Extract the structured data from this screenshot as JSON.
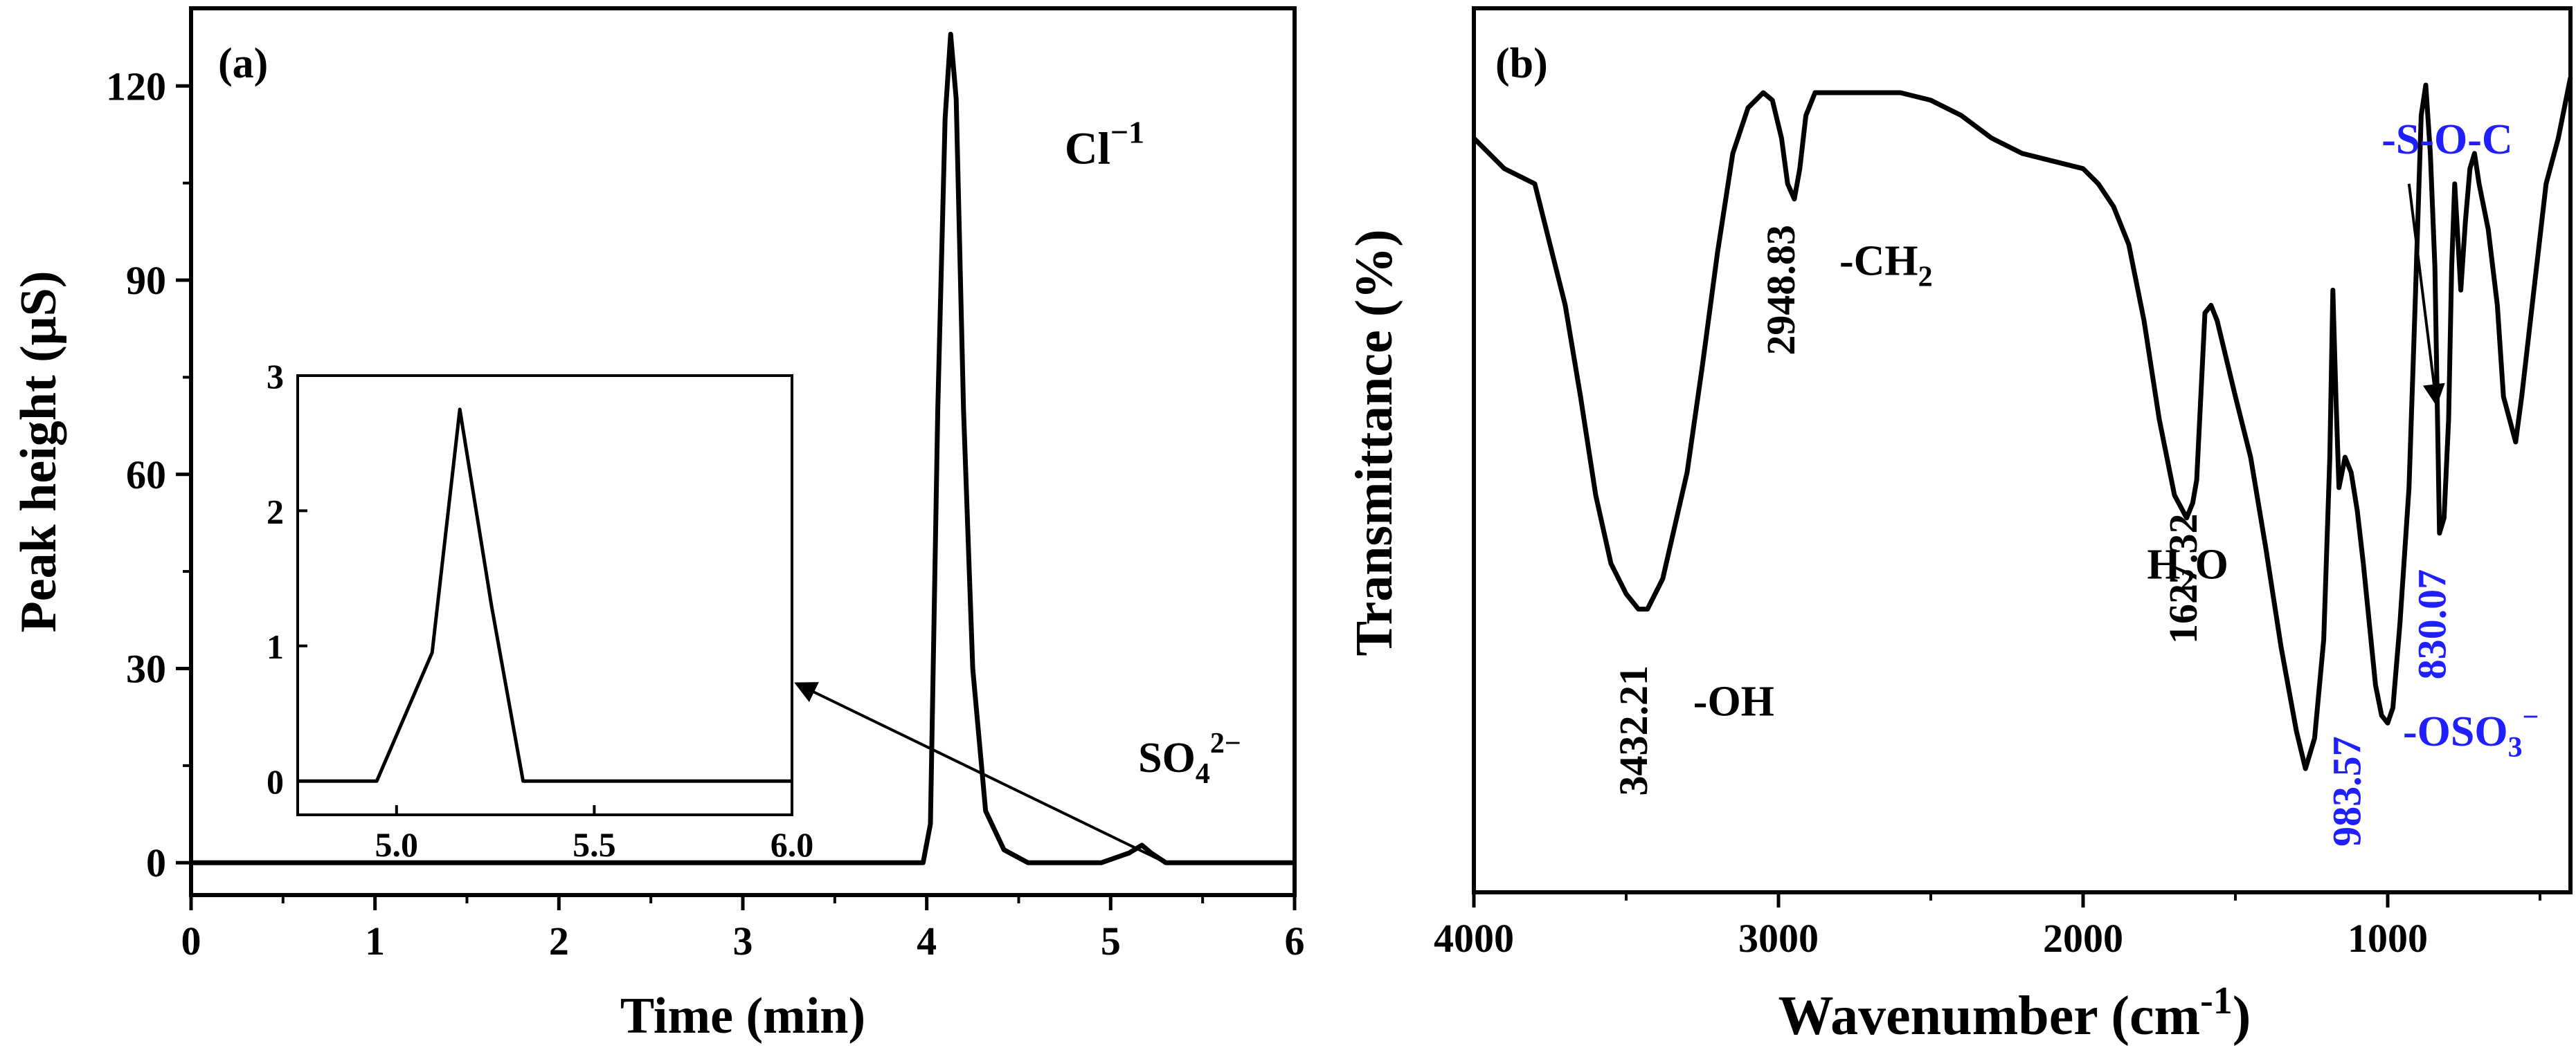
{
  "colors": {
    "ink": "#000000",
    "accent": "#1f1fff",
    "background": "#ffffff"
  },
  "chart_data": [
    {
      "id": "a",
      "type": "line",
      "panel_label": "(a)",
      "xlabel": "Time (min)",
      "ylabel": "Peak height (μS)",
      "xlim": [
        0,
        6
      ],
      "ylim": [
        -5,
        132
      ],
      "xticks": [
        0,
        1,
        2,
        3,
        4,
        5,
        6
      ],
      "xtick_labels": [
        "0",
        "1",
        "2",
        "3",
        "4",
        "5",
        "6"
      ],
      "yticks": [
        0,
        30,
        60,
        90,
        120
      ],
      "ytick_labels": [
        "0",
        "30",
        "60",
        "90",
        "120"
      ],
      "x": [
        0,
        3.98,
        4.02,
        4.06,
        4.1,
        4.13,
        4.16,
        4.2,
        4.25,
        4.32,
        4.42,
        4.55,
        4.95,
        5.0,
        5.1,
        5.17,
        5.22,
        5.3,
        6.0
      ],
      "y": [
        0,
        0,
        6,
        70,
        115,
        128,
        118,
        70,
        30,
        8,
        2,
        0,
        0,
        0.5,
        1.5,
        2.7,
        1.5,
        0,
        0
      ],
      "annotations": [
        {
          "base": "Cl",
          "sup": "−1",
          "x": 4.75,
          "y": 108
        },
        {
          "base": "SO",
          "sub": "4",
          "sup": "2−",
          "x": 5.15,
          "y": 14
        }
      ],
      "arrow": {
        "from": {
          "x": 5.3,
          "y": 0
        },
        "to_inset": "right-edge"
      },
      "inset": {
        "xlim": [
          4.75,
          6.0
        ],
        "ylim": [
          -0.25,
          3.0
        ],
        "xticks": [
          5.0,
          5.5,
          6.0
        ],
        "xtick_labels": [
          "5.0",
          "5.5",
          "6.0"
        ],
        "yticks": [
          0,
          1,
          2,
          3
        ],
        "ytick_labels": [
          "0",
          "1",
          "2",
          "3"
        ],
        "x": [
          4.75,
          4.95,
          5.09,
          5.16,
          5.24,
          5.32,
          6.0
        ],
        "y": [
          0,
          0,
          0.95,
          2.75,
          1.3,
          0,
          0
        ]
      }
    },
    {
      "id": "b",
      "type": "line",
      "panel_label": "(b)",
      "xlabel": "Wavenumber (cm",
      "xlabel_sup": "-1",
      "xlabel_close": ")",
      "ylabel": "Transmittance (%)",
      "xlim": [
        4000,
        400
      ],
      "ylim": [
        0,
        100
      ],
      "xticks": [
        4000,
        3000,
        2000,
        1000
      ],
      "xtick_labels": [
        "4000",
        "3000",
        "2000",
        "1000"
      ],
      "x": [
        4000,
        3900,
        3800,
        3750,
        3700,
        3650,
        3600,
        3550,
        3500,
        3460,
        3430,
        3380,
        3300,
        3250,
        3200,
        3150,
        3100,
        3050,
        3020,
        2990,
        2970,
        2948,
        2930,
        2910,
        2880,
        2850,
        2700,
        2600,
        2500,
        2400,
        2300,
        2200,
        2100,
        2000,
        1950,
        1900,
        1850,
        1800,
        1750,
        1700,
        1660,
        1640,
        1627,
        1600,
        1580,
        1560,
        1530,
        1500,
        1450,
        1400,
        1350,
        1300,
        1270,
        1240,
        1210,
        1190,
        1180,
        1170,
        1160,
        1140,
        1120,
        1100,
        1080,
        1060,
        1040,
        1020,
        1000,
        983,
        960,
        930,
        910,
        890,
        875,
        860,
        845,
        830,
        815,
        800,
        790,
        780,
        770,
        760,
        745,
        730,
        715,
        700,
        670,
        640,
        620,
        600,
        580,
        560,
        520,
        480,
        440,
        400
      ],
      "y": [
        92,
        88,
        86,
        78,
        70,
        58,
        45,
        36,
        32,
        30,
        30,
        34,
        48,
        62,
        77,
        90,
        96,
        98,
        97,
        92,
        86,
        84,
        88,
        95,
        98,
        98,
        98,
        98,
        97,
        95,
        92,
        90,
        89,
        88,
        86,
        83,
        78,
        68,
        55,
        45,
        42,
        44,
        47,
        69,
        70,
        68,
        63,
        58,
        50,
        38,
        25,
        14,
        9,
        13,
        26,
        50,
        72,
        58,
        46,
        50,
        48,
        43,
        36,
        28,
        20,
        16,
        15,
        17,
        28,
        46,
        70,
        95,
        99,
        90,
        75,
        40,
        42,
        55,
        75,
        86,
        79,
        72,
        81,
        88,
        90,
        86,
        80,
        70,
        58,
        55,
        52,
        58,
        72,
        86,
        92,
        100
      ],
      "annotations": [
        {
          "text": "2948.83",
          "x": 2948,
          "y": 72,
          "rotate": -90,
          "color": "ink"
        },
        {
          "base": "-CH",
          "sub": "2",
          "x": 2800,
          "y": 74,
          "color": "ink"
        },
        {
          "text": "3432.21",
          "x": 3432,
          "y": 14,
          "rotate": -90,
          "color": "ink"
        },
        {
          "text": "-OH",
          "x": 3280,
          "y": 16,
          "color": "ink"
        },
        {
          "text": "1627.32",
          "x": 1627,
          "y": 34,
          "rotate": -90,
          "color": "ink"
        },
        {
          "base": "H",
          "sub": "2",
          "tail": "O",
          "x": 1790,
          "y": 34,
          "color": "ink"
        },
        {
          "text": "983.57",
          "x": 1090,
          "y": 6,
          "rotate": -90,
          "color": "accent"
        },
        {
          "text": "830.07",
          "x": 810,
          "y": 28,
          "rotate": -90,
          "color": "accent"
        },
        {
          "base": "-OSO",
          "sub": "3",
          "sup": "−",
          "x": 950,
          "y": 12,
          "color": "accent"
        },
        {
          "text": "-S-O-C",
          "x": 1020,
          "y": 90,
          "color": "accent"
        }
      ],
      "arrow": {
        "from": {
          "x": 930,
          "y": 86
        },
        "to": {
          "x": 840,
          "y": 57
        }
      }
    }
  ]
}
